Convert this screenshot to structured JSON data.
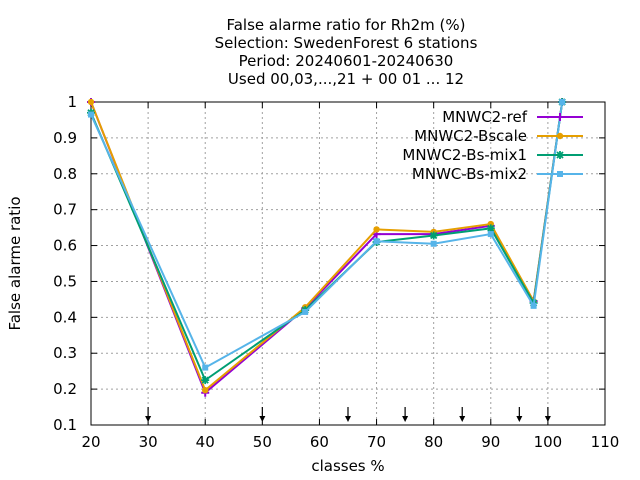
{
  "chart_data": {
    "type": "line",
    "title_lines": [
      "False alarme ratio  for Rh2m (%)",
      "Selection: SwedenForest      6 stations",
      "Period: 20240601-20240630",
      "Used 00,03,...,21 + 00 01 ... 12"
    ],
    "xlabel": "classes %",
    "ylabel": "False alarme ratio",
    "xlim": [
      20,
      110
    ],
    "ylim": [
      0.1,
      1.0
    ],
    "xticks": [
      "20",
      "30",
      "40",
      "50",
      "60",
      "70",
      "80",
      "90",
      "100",
      "110"
    ],
    "yticks": [
      "0.1",
      "0.2",
      "0.3",
      "0.4",
      "0.5",
      "0.6",
      "0.7",
      "0.8",
      "0.9",
      "1"
    ],
    "grid": true,
    "legend_position": "top-right",
    "arrow_markers_x": [
      30,
      50,
      65,
      75,
      85,
      95,
      100
    ],
    "series": [
      {
        "name": "MNWC2-ref",
        "color": "#9400d3",
        "marker": "plus",
        "x": [
          20,
          40,
          57.5,
          70,
          80,
          90,
          97.5,
          102.5
        ],
        "y": [
          1.0,
          0.19,
          0.425,
          0.632,
          0.632,
          0.655,
          0.445,
          1.0
        ]
      },
      {
        "name": "MNWC2-Bscale",
        "color": "#e69f00",
        "marker": "circle",
        "x": [
          20,
          40,
          57.5,
          70,
          80,
          90,
          97.5,
          102.5
        ],
        "y": [
          1.0,
          0.197,
          0.428,
          0.645,
          0.638,
          0.66,
          0.445,
          1.0
        ]
      },
      {
        "name": "MNWC2-Bs-mix1",
        "color": "#009e73",
        "marker": "star",
        "x": [
          20,
          40,
          57.5,
          70,
          80,
          90,
          97.5,
          102.5
        ],
        "y": [
          0.97,
          0.225,
          0.42,
          0.61,
          0.628,
          0.648,
          0.44,
          1.0
        ]
      },
      {
        "name": "MNWC-Bs-mix2",
        "color": "#56b4e9",
        "marker": "square",
        "x": [
          20,
          40,
          57.5,
          70,
          80,
          90,
          97.5,
          102.5
        ],
        "y": [
          0.965,
          0.26,
          0.415,
          0.612,
          0.605,
          0.632,
          0.432,
          1.0
        ]
      }
    ]
  }
}
